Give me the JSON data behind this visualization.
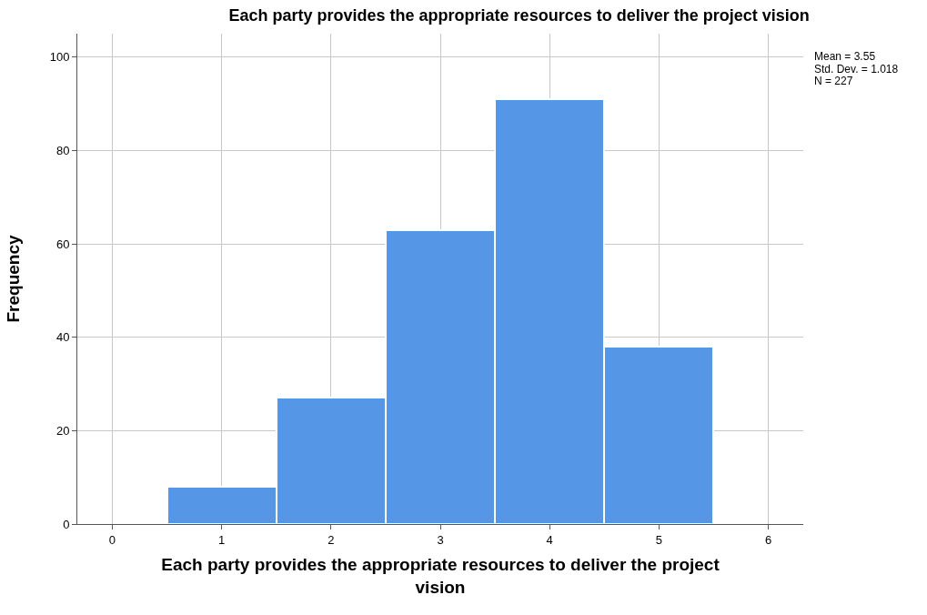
{
  "chart_data": {
    "type": "histogram",
    "title": "Each party provides the appropriate resources to deliver the project vision",
    "xlabel": "Each party provides the appropriate resources to deliver the project vision",
    "ylabel": "Frequency",
    "bins": [
      0.5,
      1.5,
      2.5,
      3.5,
      4.5,
      5.5
    ],
    "values": [
      8,
      27,
      63,
      91,
      38
    ],
    "color": "#5596e6",
    "xlim": [
      -0.32,
      6.32
    ],
    "xticks": [
      0,
      1,
      2,
      3,
      4,
      5,
      6
    ],
    "ylim": [
      0,
      105
    ],
    "yticks": [
      0,
      20,
      40,
      60,
      80,
      100
    ],
    "grid": true,
    "annotations": [
      "Mean = 3.55",
      "Std. Dev. = 1.018",
      "N = 227"
    ]
  }
}
